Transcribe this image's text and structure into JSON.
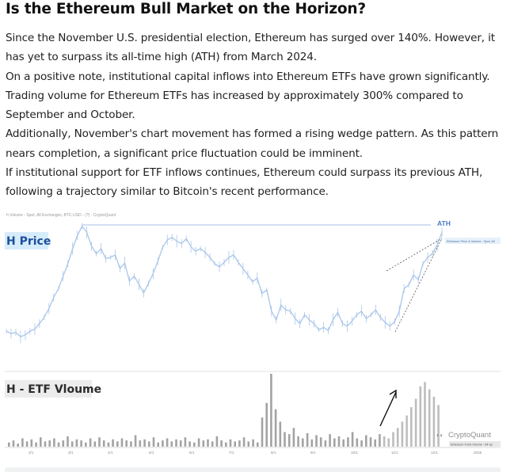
{
  "article": {
    "title": "Is the Ethereum Bull Market on the Horizon?",
    "paragraphs": [
      "Since the November U.S. presidential election, Ethereum has surged over 140%. However, it has yet to surpass its all-time high (ATH) from March 2024.",
      "On a positive note, institutional capital inflows into Ethereum ETFs have grown significantly. Trading volume for Ethereum ETFs has increased by approximately 300% compared to September and October.",
      "Additionally, November's chart movement has formed a rising wedge pattern. As this pattern nears completion, a significant price fluctuation could be imminent.",
      "If institutional support for ETF inflows continues, Ethereum could surpass its previous ATH, following a trajectory similar to Bitcoin's recent performance."
    ]
  },
  "chart": {
    "header_text": "h Volume - Spot, All Exchanges, BTC-USD - (?) - CryptoQuant",
    "price_label": "H Price",
    "volume_label": "H - ETF Vloume",
    "ath_label": "ATH",
    "legend_price": "Ethereum Price & Volume - Spot, All",
    "legend_volume": "Ethereum Fund Volume - All Sy",
    "watermark": "CryptoQuant",
    "x_ticks": [
      "2/1",
      "3/1",
      "4/1",
      "5/1",
      "6/1",
      "7/1",
      "8/1",
      "9/1",
      "10/1",
      "11/1",
      "12/1",
      "2025"
    ],
    "colors": {
      "price_line": "#a9c6ea",
      "volume_bar": "#a3a3a3",
      "volume_bar_highlight": "#bdbdbd",
      "ath_line": "#b9cbe9",
      "ath_text": "#4a78c8",
      "label_bg_blue": "#d7ecfb",
      "label_bg_gray": "#ececec"
    }
  },
  "chart_data": [
    {
      "type": "line",
      "title": "",
      "series": [
        {
          "values": [
            2300,
            2260,
            2280,
            2210,
            2240,
            2300,
            2330,
            2420,
            2520,
            2660,
            2840,
            2980,
            3180,
            3380,
            3620,
            3830,
            3980,
            3880,
            3660,
            3540,
            3620,
            3460,
            3480,
            3520,
            3300,
            3390,
            3100,
            3180,
            3050,
            2910,
            3060,
            3220,
            3420,
            3640,
            3760,
            3800,
            3740,
            3700,
            3780,
            3650,
            3580,
            3620,
            3560,
            3480,
            3380,
            3330,
            3400,
            3480,
            3520,
            3400,
            3300,
            3200,
            3090,
            3150,
            2900,
            2960,
            2620,
            2480,
            2720,
            2640,
            2620,
            2500,
            2420,
            2560,
            2480,
            2420,
            2320,
            2360,
            2310,
            2480,
            2600,
            2420,
            2380,
            2460,
            2560,
            2620,
            2500,
            2560,
            2640,
            2520,
            2440,
            2380,
            2450,
            2620,
            2980,
            3040,
            3200,
            3120,
            3380,
            3480,
            3540,
            3680,
            3880
          ]
        },
        {
          "name": "ATH",
          "values": [
            4000
          ]
        }
      ]
    },
    {
      "type": "bar",
      "title": "",
      "series": [
        {
          "values": [
            4,
            6,
            3,
            8,
            5,
            7,
            4,
            9,
            5,
            6,
            8,
            4,
            6,
            10,
            5,
            7,
            6,
            4,
            8,
            5,
            9,
            6,
            4,
            7,
            5,
            8,
            6,
            5,
            11,
            6,
            7,
            5,
            9,
            4,
            6,
            8,
            5,
            7,
            6,
            9,
            5,
            4,
            8,
            6,
            7,
            5,
            10,
            6,
            4,
            7,
            5,
            6,
            9,
            5,
            7,
            4,
            28,
            42,
            70,
            36,
            24,
            14,
            12,
            18,
            10,
            8,
            13,
            7,
            11,
            9,
            6,
            12,
            8,
            10,
            7,
            9,
            14,
            8,
            6,
            11,
            9,
            7,
            12,
            10,
            8,
            14,
            18,
            24,
            30,
            38,
            46,
            58,
            62,
            55,
            48,
            40
          ]
        }
      ]
    }
  ]
}
